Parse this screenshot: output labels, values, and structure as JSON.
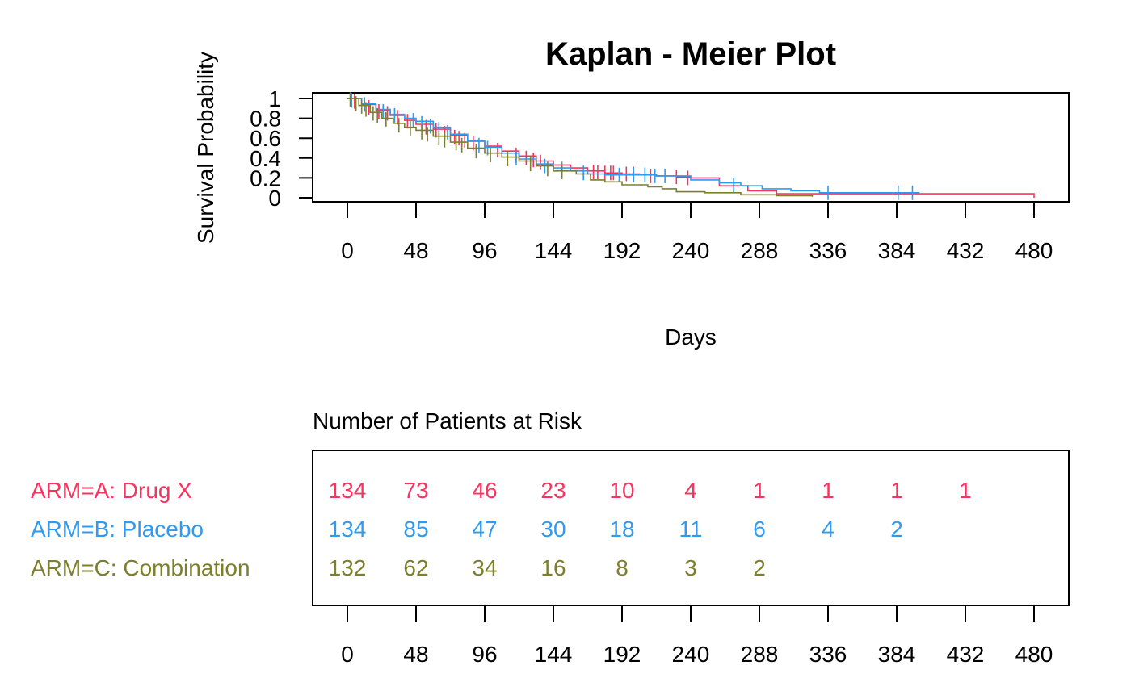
{
  "chart_data": {
    "type": "line",
    "subtype": "kaplan-meier",
    "title": "Kaplan - Meier Plot",
    "xlabel": "Days",
    "ylabel": "Survival Probability",
    "xlim": [
      0,
      480
    ],
    "ylim": [
      0,
      1
    ],
    "x_ticks": [
      0,
      48,
      96,
      144,
      192,
      240,
      288,
      336,
      384,
      432,
      480
    ],
    "y_ticks": [
      0,
      0.2,
      0.4,
      0.6,
      0.8,
      1
    ],
    "y_tick_labels": [
      "0",
      "0.2",
      "0.4",
      "0.6",
      "0.8",
      "1"
    ],
    "grid": false,
    "series": [
      {
        "name": "ARM=A: Drug X",
        "color": "#F8345E",
        "points": [
          [
            0,
            1
          ],
          [
            10,
            0.94
          ],
          [
            20,
            0.88
          ],
          [
            30,
            0.83
          ],
          [
            40,
            0.78
          ],
          [
            48,
            0.74
          ],
          [
            60,
            0.69
          ],
          [
            72,
            0.63
          ],
          [
            84,
            0.57
          ],
          [
            96,
            0.52
          ],
          [
            108,
            0.47
          ],
          [
            120,
            0.42
          ],
          [
            132,
            0.37
          ],
          [
            144,
            0.33
          ],
          [
            156,
            0.3
          ],
          [
            168,
            0.27
          ],
          [
            180,
            0.25
          ],
          [
            192,
            0.24
          ],
          [
            204,
            0.23
          ],
          [
            216,
            0.22
          ],
          [
            230,
            0.21
          ],
          [
            240,
            0.2
          ],
          [
            260,
            0.12
          ],
          [
            280,
            0.07
          ],
          [
            300,
            0.04
          ],
          [
            340,
            0.04
          ],
          [
            480,
            0.04
          ],
          [
            480,
            0.0
          ]
        ],
        "censored": [
          [
            5,
            0.97
          ],
          [
            15,
            0.91
          ],
          [
            22,
            0.87
          ],
          [
            28,
            0.85
          ],
          [
            35,
            0.81
          ],
          [
            42,
            0.77
          ],
          [
            55,
            0.71
          ],
          [
            62,
            0.68
          ],
          [
            68,
            0.65
          ],
          [
            75,
            0.61
          ],
          [
            78,
            0.6
          ],
          [
            82,
            0.58
          ],
          [
            88,
            0.55
          ],
          [
            105,
            0.48
          ],
          [
            118,
            0.43
          ],
          [
            125,
            0.4
          ],
          [
            130,
            0.38
          ],
          [
            135,
            0.36
          ],
          [
            172,
            0.26
          ],
          [
            175,
            0.26
          ],
          [
            180,
            0.25
          ],
          [
            184,
            0.25
          ],
          [
            186,
            0.25
          ],
          [
            195,
            0.24
          ],
          [
            200,
            0.24
          ],
          [
            212,
            0.22
          ],
          [
            230,
            0.21
          ],
          [
            238,
            0.2
          ]
        ]
      },
      {
        "name": "ARM=B: Placebo",
        "color": "#2F9AF2",
        "points": [
          [
            0,
            1
          ],
          [
            10,
            0.95
          ],
          [
            20,
            0.89
          ],
          [
            30,
            0.84
          ],
          [
            40,
            0.8
          ],
          [
            48,
            0.77
          ],
          [
            60,
            0.71
          ],
          [
            72,
            0.64
          ],
          [
            84,
            0.57
          ],
          [
            96,
            0.51
          ],
          [
            108,
            0.45
          ],
          [
            120,
            0.39
          ],
          [
            132,
            0.34
          ],
          [
            144,
            0.3
          ],
          [
            156,
            0.27
          ],
          [
            168,
            0.24
          ],
          [
            180,
            0.23
          ],
          [
            192,
            0.23
          ],
          [
            204,
            0.23
          ],
          [
            216,
            0.22
          ],
          [
            240,
            0.18
          ],
          [
            260,
            0.15
          ],
          [
            275,
            0.12
          ],
          [
            290,
            0.09
          ],
          [
            310,
            0.07
          ],
          [
            330,
            0.05
          ],
          [
            400,
            0.05
          ]
        ],
        "censored": [
          [
            3,
            0.98
          ],
          [
            12,
            0.94
          ],
          [
            25,
            0.87
          ],
          [
            33,
            0.83
          ],
          [
            46,
            0.78
          ],
          [
            52,
            0.75
          ],
          [
            58,
            0.72
          ],
          [
            64,
            0.69
          ],
          [
            70,
            0.66
          ],
          [
            92,
            0.53
          ],
          [
            98,
            0.5
          ],
          [
            118,
            0.4
          ],
          [
            138,
            0.32
          ],
          [
            150,
            0.29
          ],
          [
            165,
            0.25
          ],
          [
            190,
            0.23
          ],
          [
            200,
            0.23
          ],
          [
            208,
            0.23
          ],
          [
            215,
            0.22
          ],
          [
            222,
            0.22
          ],
          [
            270,
            0.13
          ],
          [
            336,
            0.05
          ],
          [
            385,
            0.05
          ],
          [
            395,
            0.05
          ]
        ]
      },
      {
        "name": "ARM=C: Combination",
        "color": "#7D7F2B",
        "points": [
          [
            0,
            1
          ],
          [
            8,
            0.93
          ],
          [
            16,
            0.86
          ],
          [
            24,
            0.8
          ],
          [
            32,
            0.75
          ],
          [
            40,
            0.71
          ],
          [
            48,
            0.68
          ],
          [
            60,
            0.62
          ],
          [
            72,
            0.56
          ],
          [
            84,
            0.5
          ],
          [
            96,
            0.45
          ],
          [
            108,
            0.41
          ],
          [
            120,
            0.37
          ],
          [
            132,
            0.32
          ],
          [
            144,
            0.27
          ],
          [
            160,
            0.24
          ],
          [
            170,
            0.18
          ],
          [
            180,
            0.16
          ],
          [
            192,
            0.13
          ],
          [
            210,
            0.11
          ],
          [
            220,
            0.09
          ],
          [
            230,
            0.06
          ],
          [
            250,
            0.05
          ],
          [
            275,
            0.03
          ],
          [
            300,
            0.02
          ],
          [
            325,
            0.01
          ]
        ],
        "censored": [
          [
            2,
            0.99
          ],
          [
            6,
            0.95
          ],
          [
            10,
            0.92
          ],
          [
            13,
            0.89
          ],
          [
            18,
            0.85
          ],
          [
            21,
            0.83
          ],
          [
            27,
            0.79
          ],
          [
            36,
            0.73
          ],
          [
            44,
            0.7
          ],
          [
            52,
            0.66
          ],
          [
            56,
            0.64
          ],
          [
            64,
            0.6
          ],
          [
            68,
            0.58
          ],
          [
            76,
            0.55
          ],
          [
            80,
            0.53
          ],
          [
            90,
            0.47
          ],
          [
            100,
            0.43
          ],
          [
            112,
            0.39
          ],
          [
            128,
            0.34
          ],
          [
            140,
            0.29
          ],
          [
            150,
            0.26
          ]
        ]
      }
    ],
    "risk_table": {
      "title": "Number of Patients at Risk",
      "times": [
        0,
        48,
        96,
        144,
        192,
        240,
        288,
        336,
        384,
        432,
        480
      ],
      "rows": [
        {
          "label": "ARM=A: Drug X",
          "color": "#F8345E",
          "counts": [
            "134",
            "73",
            "46",
            "23",
            "10",
            "4",
            "1",
            "1",
            "1",
            "1"
          ]
        },
        {
          "label": "ARM=B: Placebo",
          "color": "#2F9AF2",
          "counts": [
            "134",
            "85",
            "47",
            "30",
            "18",
            "11",
            "6",
            "4",
            "2"
          ]
        },
        {
          "label": "ARM=C: Combination",
          "color": "#7D7F2B",
          "counts": [
            "132",
            "62",
            "34",
            "16",
            "8",
            "3",
            "2"
          ]
        }
      ]
    }
  }
}
